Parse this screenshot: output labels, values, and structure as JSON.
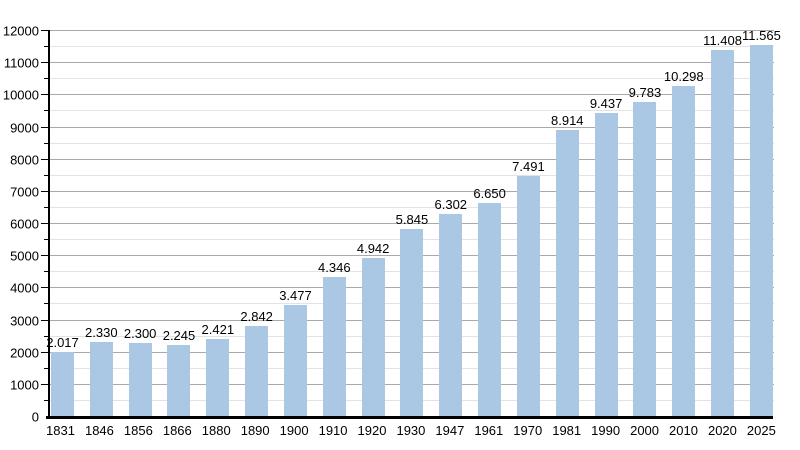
{
  "chart_data": {
    "type": "bar",
    "title": "",
    "xlabel": "",
    "ylabel": "",
    "categories": [
      "1831",
      "1846",
      "1856",
      "1866",
      "1880",
      "1890",
      "1900",
      "1910",
      "1920",
      "1930",
      "1947",
      "1961",
      "1970",
      "1981",
      "1990",
      "2000",
      "2010",
      "2020",
      "2025"
    ],
    "values": [
      2017,
      2330,
      2300,
      2245,
      2421,
      2842,
      3477,
      4346,
      4942,
      5845,
      6302,
      6650,
      7491,
      8914,
      9437,
      9783,
      10298,
      11408,
      11565
    ],
    "value_labels": [
      "2.017",
      "2.330",
      "2.300",
      "2.245",
      "2.421",
      "2.842",
      "3.477",
      "4.346",
      "4.942",
      "5.845",
      "6.302",
      "6.650",
      "7.491",
      "8.914",
      "9.437",
      "9.783",
      "10.298",
      "11.408",
      "11.565"
    ],
    "ylim": [
      0,
      12000
    ],
    "y_major_step": 1000,
    "y_minor_step": 500,
    "y_tick_labels": [
      "0",
      "1000",
      "2000",
      "3000",
      "4000",
      "5000",
      "6000",
      "7000",
      "8000",
      "9000",
      "10000",
      "11000",
      "12000"
    ],
    "grid": true,
    "legend": false,
    "colors": {
      "bar": "#aac8e3",
      "axis": "#000000",
      "major_grid": "#a9a9a9",
      "minor_grid": "#e3e3e3",
      "text": "#000000",
      "background": "#ffffff"
    }
  }
}
